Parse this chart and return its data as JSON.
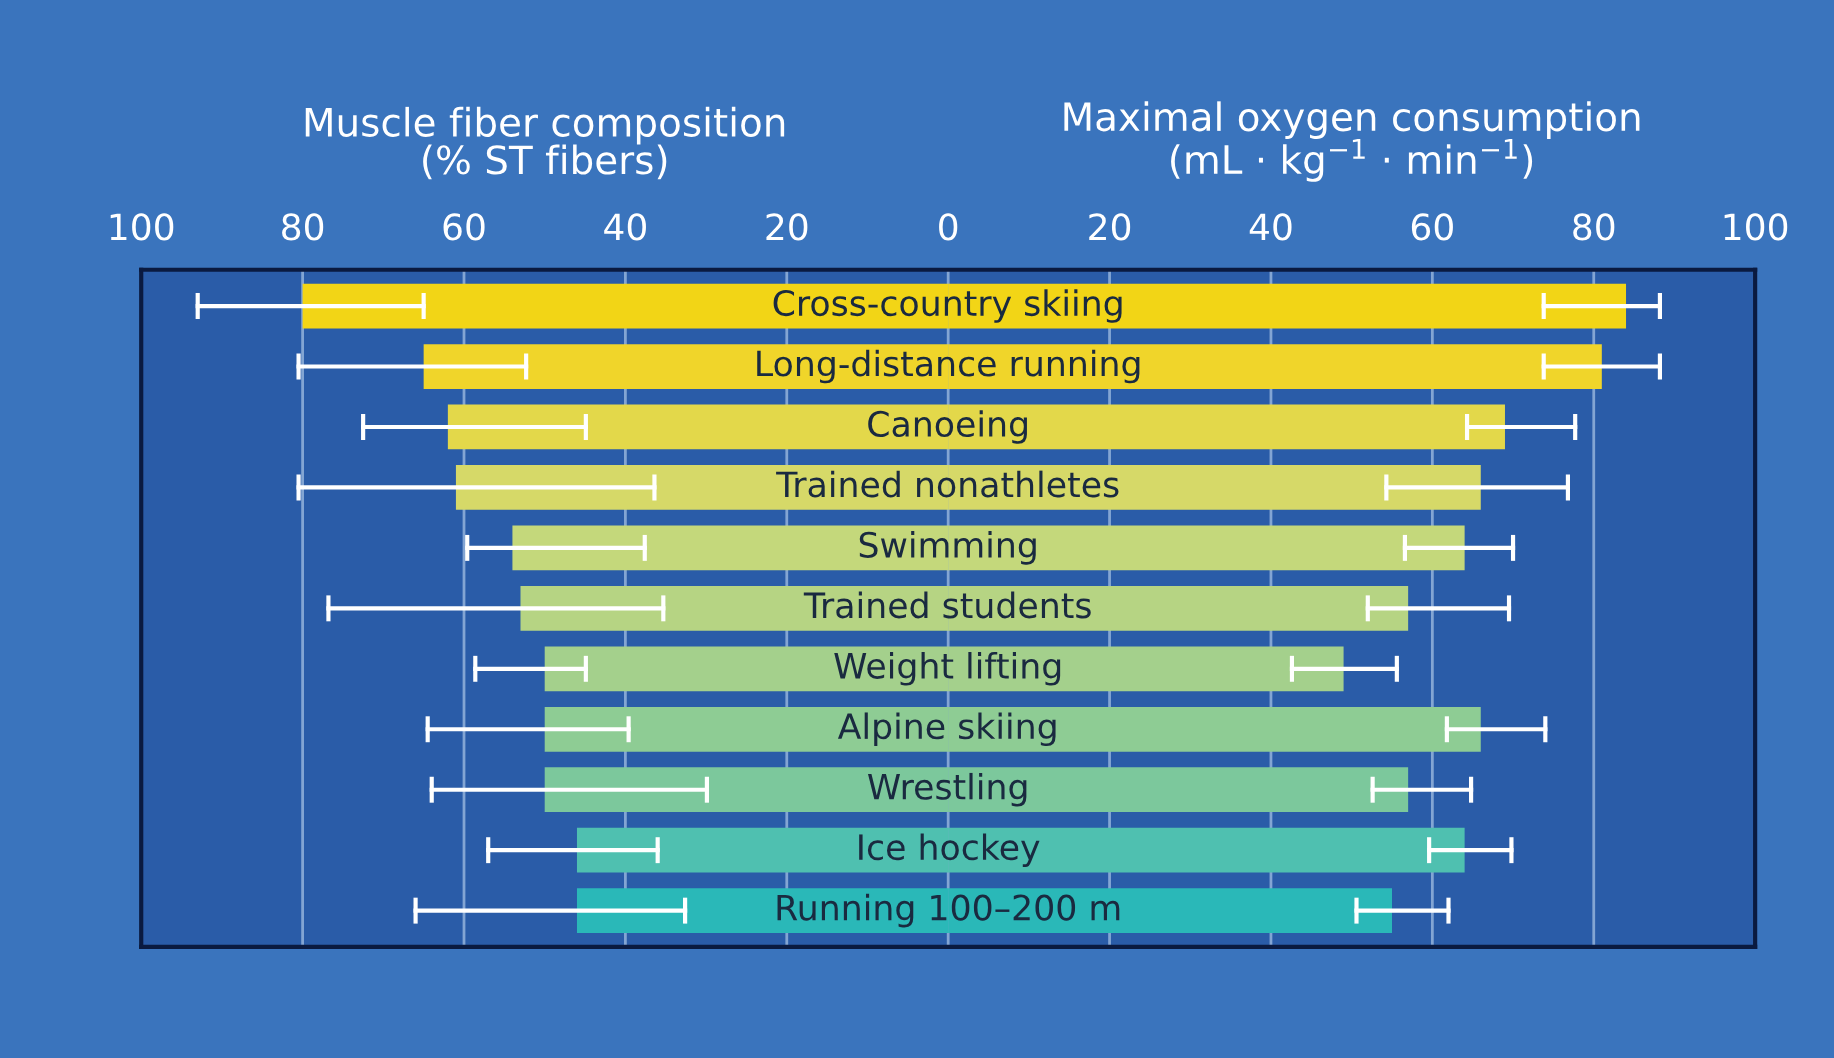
{
  "chart_data": {
    "type": "bar",
    "orientation": "horizontal",
    "categories": [
      "Cross-country skiing",
      "Long-distance running",
      "Canoeing",
      "Trained nonathletes",
      "Swimming",
      "Trained students",
      "Weight lifting",
      "Alpine skiing",
      "Wrestling",
      "Ice hockey",
      "Running 100–200 m"
    ],
    "series": [
      {
        "name": "Muscle fiber composition\n(% ST fibers)",
        "colors": [
          "#f2d516",
          "#f0d52a",
          "#e3d84a",
          "#d6d968",
          "#c4d87b",
          "#b6d483",
          "#a4d08c",
          "#8ecc94",
          "#7cc89c",
          "#4fc0b0",
          "#2ab8b8"
        ],
        "values": [
          -80,
          -65,
          -62,
          -61,
          -54,
          -53,
          -50,
          -50,
          -50,
          -46,
          -46
        ],
        "errors": [
          [
            -93,
            -65
          ],
          [
            -80.5,
            -52.3
          ],
          [
            -72.5,
            -44.9
          ],
          [
            -80.5,
            -36.4
          ],
          [
            -59.6,
            -37.6
          ],
          [
            -76.8,
            -35.3
          ],
          [
            -58.6,
            -44.9
          ],
          [
            -64.5,
            -39.6
          ],
          [
            -64,
            -29.9
          ],
          [
            -57,
            -36
          ],
          [
            -66,
            -32.6
          ]
        ]
      },
      {
        "name": "Maximal oxygen consumption\n(mL · kg$^{−1}$ · min$^{−1}$)",
        "colors": [
          "#f2d516",
          "#f0d52a",
          "#e3d84a",
          "#d6d968",
          "#c4d87b",
          "#b6d483",
          "#a4d08c",
          "#8ecc94",
          "#7cc89c",
          "#4fc0b0",
          "#2ab8b8"
        ],
        "values": [
          84,
          81,
          69,
          66,
          64,
          57,
          49,
          66,
          57,
          64,
          55
        ],
        "errors": [
          [
            73.8,
            88.2
          ],
          [
            73.8,
            88.2
          ],
          [
            64.3,
            77.7
          ],
          [
            54.3,
            76.8
          ],
          [
            56.6,
            70
          ],
          [
            52,
            69.5
          ],
          [
            42.6,
            55.6
          ],
          [
            61.8,
            74
          ],
          [
            52.6,
            64.8
          ],
          [
            59.6,
            69.8
          ],
          [
            50.6,
            62
          ]
        ]
      }
    ],
    "stacked": true,
    "xlim": [
      -100,
      100
    ],
    "xticks": [
      {
        "value": -100,
        "label": "100"
      },
      {
        "value": -80,
        "label": "80"
      },
      {
        "value": -60,
        "label": "60"
      },
      {
        "value": -40,
        "label": "40"
      },
      {
        "value": -20,
        "label": "20"
      },
      0,
      20,
      40,
      60,
      80,
      100
    ],
    "grid": "x",
    "legend": false,
    "tick_labels": "x"
  }
}
